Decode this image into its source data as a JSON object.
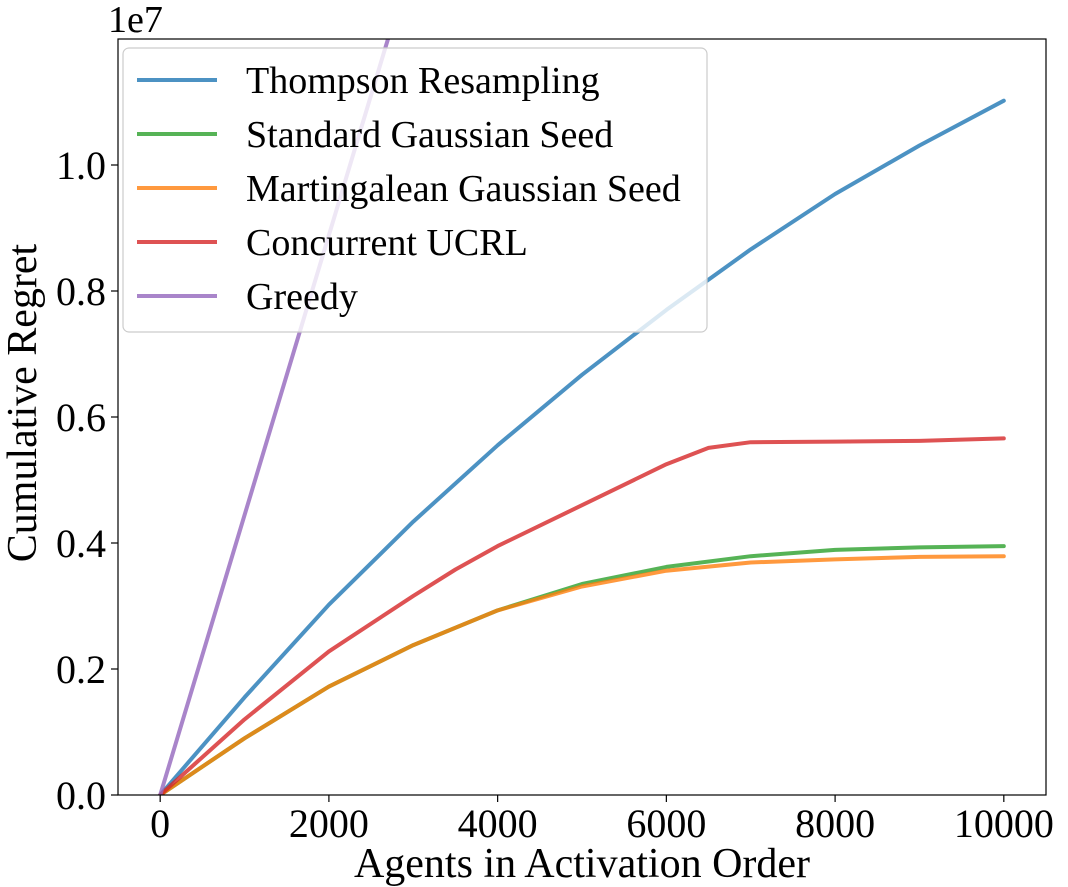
{
  "chart_data": {
    "type": "line",
    "xlabel": "Agents in Activation Order",
    "ylabel": "Cumulative Regret",
    "y_scale_label": "1e7",
    "xlim": [
      -500,
      10500
    ],
    "ylim": [
      0,
      1.2
    ],
    "x_ticks": [
      0,
      2000,
      4000,
      6000,
      8000,
      10000
    ],
    "x_tick_labels": [
      "0",
      "2000",
      "4000",
      "6000",
      "8000",
      "10000"
    ],
    "y_ticks": [
      0.0,
      0.2,
      0.4,
      0.6,
      0.8,
      1.0
    ],
    "y_tick_labels": [
      "0.0",
      "0.2",
      "0.4",
      "0.6",
      "0.8",
      "1.0"
    ],
    "grid": false,
    "legend_position": "upper-left",
    "series": [
      {
        "name": "Thompson Resampling",
        "color": "#1f77b4",
        "x": [
          0,
          1000,
          2000,
          3000,
          4000,
          5000,
          6000,
          7000,
          8000,
          9000,
          10000
        ],
        "y": [
          0.0,
          0.155,
          0.302,
          0.434,
          0.555,
          0.667,
          0.77,
          0.866,
          0.954,
          1.031,
          1.102
        ]
      },
      {
        "name": "Standard Gaussian Seed",
        "color": "#2ca02c",
        "x": [
          0,
          1000,
          2000,
          3000,
          4000,
          5000,
          6000,
          7000,
          8000,
          9000,
          10000
        ],
        "y": [
          0.0,
          0.09,
          0.172,
          0.238,
          0.293,
          0.335,
          0.362,
          0.379,
          0.389,
          0.393,
          0.395
        ]
      },
      {
        "name": "Martingalean Gaussian Seed",
        "color": "#ff7f0e",
        "x": [
          0,
          1000,
          2000,
          3000,
          4000,
          5000,
          6000,
          7000,
          8000,
          9000,
          10000
        ],
        "y": [
          0.0,
          0.09,
          0.172,
          0.238,
          0.293,
          0.331,
          0.356,
          0.369,
          0.374,
          0.378,
          0.379
        ]
      },
      {
        "name": "Concurrent UCRL",
        "color": "#d62728",
        "x": [
          0,
          1000,
          2000,
          3000,
          3500,
          4000,
          5000,
          6000,
          6500,
          7000,
          8000,
          9000,
          10000
        ],
        "y": [
          0.0,
          0.12,
          0.228,
          0.316,
          0.358,
          0.395,
          0.46,
          0.525,
          0.551,
          0.56,
          0.561,
          0.562,
          0.566
        ]
      },
      {
        "name": "Greedy",
        "color": "#9467bd",
        "x": [
          0,
          2700
        ],
        "y": [
          0.0,
          1.2
        ]
      }
    ]
  }
}
